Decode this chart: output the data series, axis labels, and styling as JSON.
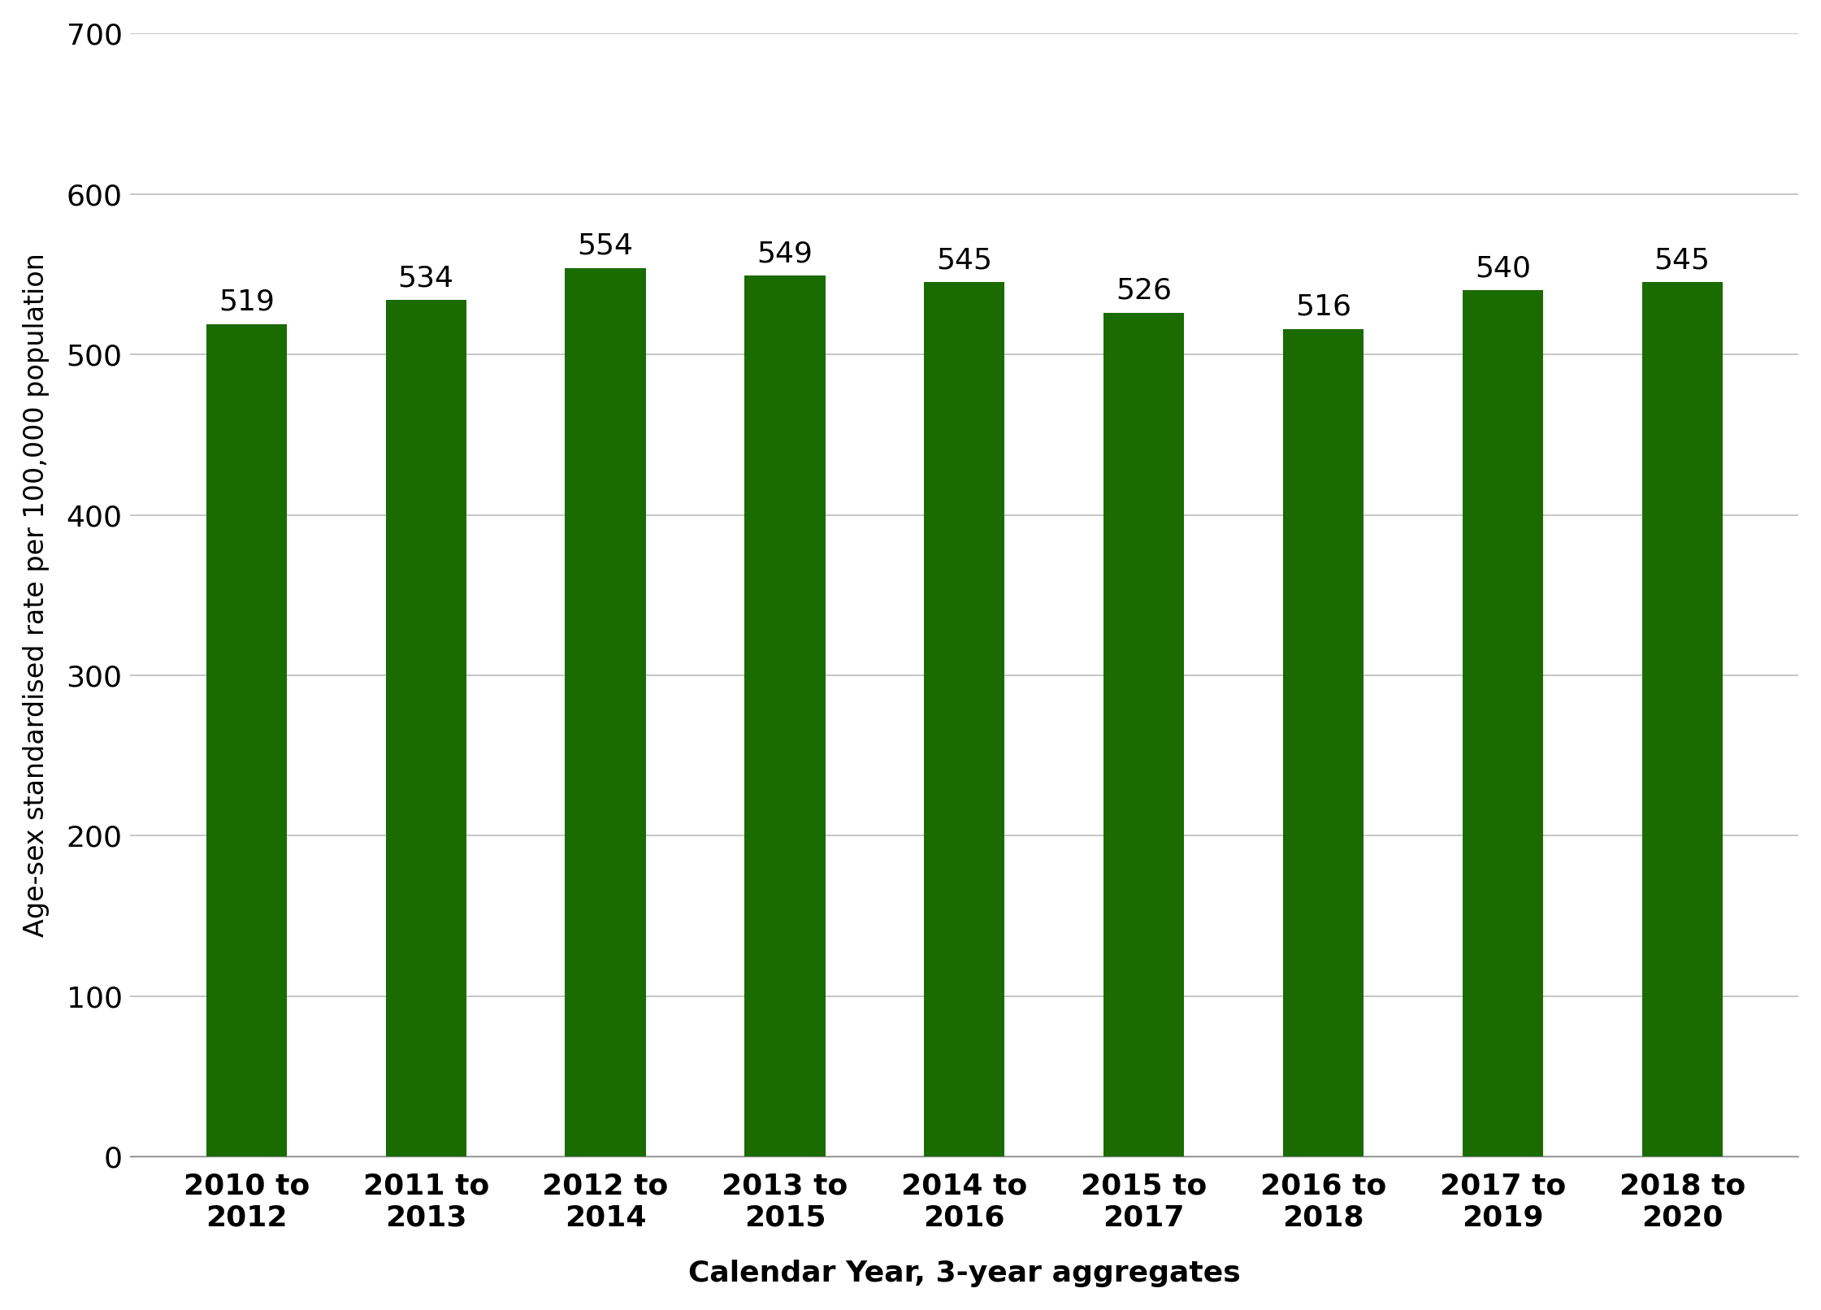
{
  "categories": [
    "2010 to\n2012",
    "2011 to\n2013",
    "2012 to\n2014",
    "2013 to\n2015",
    "2014 to\n2016",
    "2015 to\n2017",
    "2016 to\n2018",
    "2017 to\n2019",
    "2018 to\n2020"
  ],
  "values": [
    519,
    534,
    554,
    549,
    545,
    526,
    516,
    540,
    545
  ],
  "bar_color": "#1a6b00",
  "ylabel": "Age-sex standardised rate per 100,000 population",
  "xlabel": "Calendar Year, 3-year aggregates",
  "ylim": [
    0,
    700
  ],
  "yticks": [
    0,
    100,
    200,
    300,
    400,
    500,
    600,
    700
  ],
  "ylabel_fontsize": 24,
  "xlabel_fontsize": 26,
  "tick_fontsize": 26,
  "annotation_fontsize": 26,
  "bar_width": 0.45,
  "background_color": "#ffffff",
  "grid_color": "#bbbbbb"
}
